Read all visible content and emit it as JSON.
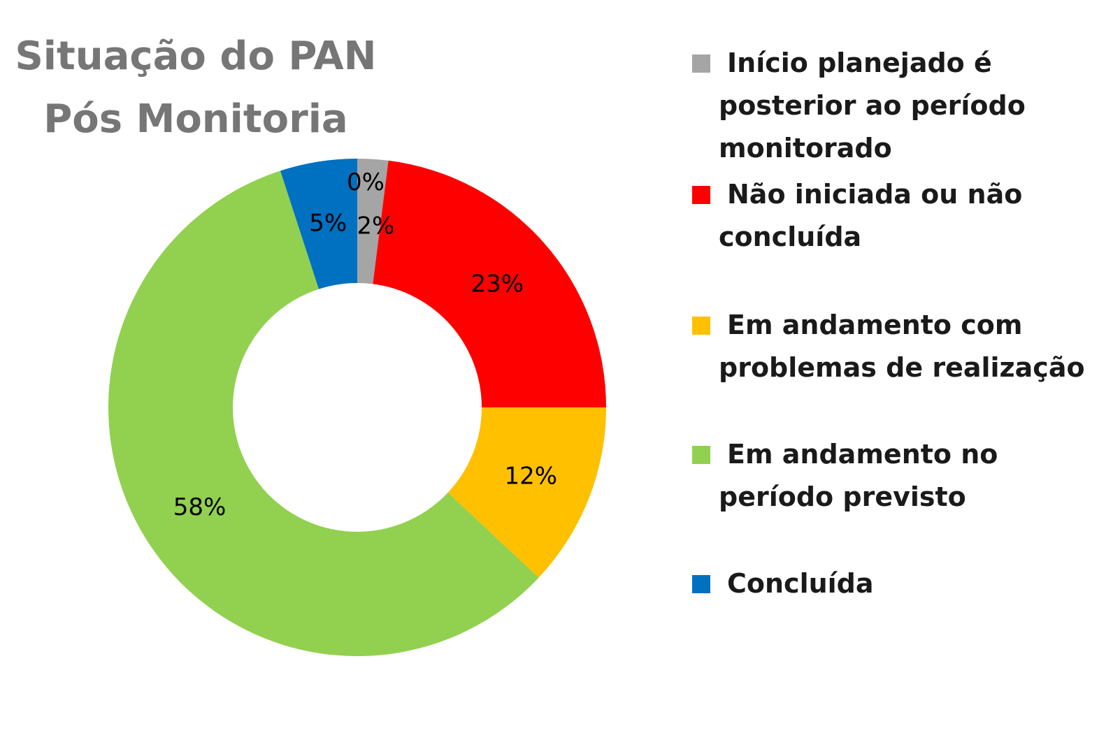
{
  "chart_data": {
    "type": "pie",
    "title_lines": [
      "Situação do PAN",
      "Pós Monitoria"
    ],
    "legend_placement": "right",
    "slices": [
      {
        "name_lines": [
          "Início planejado é",
          "posterior ao período",
          "monitorado"
        ],
        "value": 2,
        "label": "2%",
        "color": "#A5A5A5"
      },
      {
        "name_lines": [
          "Não iniciada ou não",
          "concluída"
        ],
        "value": 23,
        "label": "23%",
        "color": "#FF0000"
      },
      {
        "name_lines": [
          "Em andamento com",
          "problemas de realização"
        ],
        "value": 12,
        "label": "12%",
        "color": "#FFC000"
      },
      {
        "name_lines": [
          "Em andamento no",
          "período previsto"
        ],
        "value": 58,
        "label": "58%",
        "color": "#92D050"
      },
      {
        "name_lines": [
          "Concluída"
        ],
        "value": 5,
        "label": "5%",
        "color": "#0070C0"
      }
    ],
    "extra_label": "0%"
  }
}
